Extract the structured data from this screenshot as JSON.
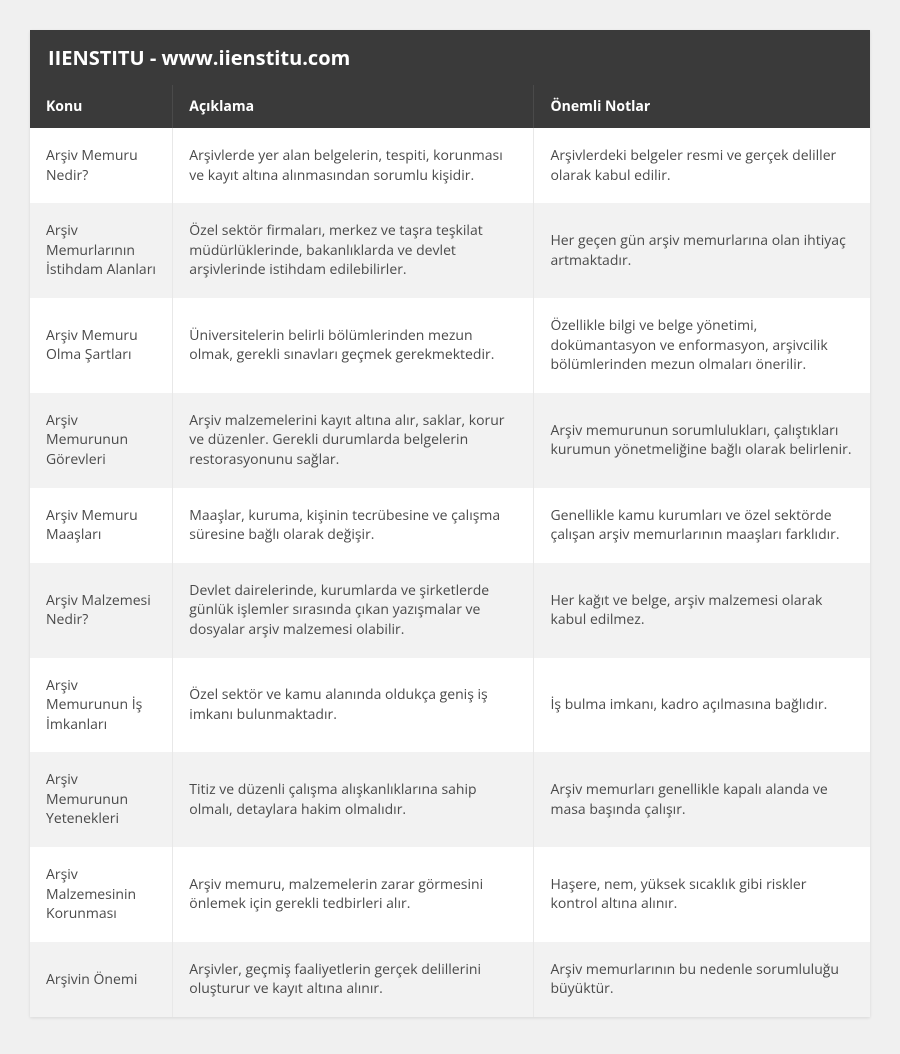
{
  "header": {
    "title": "IIENSTITU - www.iienstitu.com"
  },
  "table": {
    "columns": [
      {
        "label": "Konu",
        "class": "col-konu"
      },
      {
        "label": "Açıklama",
        "class": "col-aciklama"
      },
      {
        "label": "Önemli Notlar",
        "class": "col-notlar"
      }
    ],
    "rows": [
      {
        "konu": "Arşiv Memuru Nedir?",
        "aciklama": "Arşivlerde yer alan belgelerin, tespiti, korunması ve kayıt altına alınmasından sorumlu kişidir.",
        "notlar": "Arşivlerdeki belgeler resmi ve gerçek deliller olarak kabul edilir."
      },
      {
        "konu": "Arşiv Memurlarının İstihdam Alanları",
        "aciklama": "Özel sektör firmaları, merkez ve taşra teşkilat müdürlüklerinde, bakanlıklarda ve devlet arşivlerinde istihdam edilebilirler.",
        "notlar": "Her geçen gün arşiv memurlarına olan ihtiyaç artmaktadır."
      },
      {
        "konu": "Arşiv Memuru Olma Şartları",
        "aciklama": "Üniversitelerin belirli bölümlerinden mezun olmak, gerekli sınavları geçmek gerekmektedir.",
        "notlar": "Özellikle bilgi ve belge yönetimi, dokümantasyon ve enformasyon, arşivcilik bölümlerinden mezun olmaları önerilir."
      },
      {
        "konu": "Arşiv Memurunun Görevleri",
        "aciklama": "Arşiv malzemelerini kayıt altına alır, saklar, korur ve düzenler. Gerekli durumlarda belgelerin restorasyonunu sağlar.",
        "notlar": "Arşiv memurunun sorumlulukları, çalıştıkları kurumun yönetmeliğine bağlı olarak belirlenir."
      },
      {
        "konu": "Arşiv Memuru Maaşları",
        "aciklama": "Maaşlar, kuruma, kişinin tecrübesine ve çalışma süresine bağlı olarak değişir.",
        "notlar": "Genellikle kamu kurumları ve özel sektörde çalışan arşiv memurlarının maaşları farklıdır."
      },
      {
        "konu": "Arşiv Malzemesi Nedir?",
        "aciklama": "Devlet dairelerinde, kurumlarda ve şirketlerde günlük işlemler sırasında çıkan yazışmalar ve dosyalar arşiv malzemesi olabilir.",
        "notlar": "Her kağıt ve belge, arşiv malzemesi olarak kabul edilmez."
      },
      {
        "konu": "Arşiv Memurunun İş İmkanları",
        "aciklama": "Özel sektör ve kamu alanında oldukça geniş iş imkanı bulunmaktadır.",
        "notlar": "İş bulma imkanı, kadro açılmasına bağlıdır."
      },
      {
        "konu": "Arşiv Memurunun Yetenekleri",
        "aciklama": "Titiz ve düzenli çalışma alışkanlıklarına sahip olmalı, detaylara hakim olmalıdır.",
        "notlar": "Arşiv memurları genellikle kapalı alanda ve masa başında çalışır."
      },
      {
        "konu": "Arşiv Malzemesinin Korunması",
        "aciklama": "Arşiv memuru, malzemelerin zarar görmesini önlemek için gerekli tedbirleri alır.",
        "notlar": "Haşere, nem, yüksek sıcaklık gibi riskler kontrol altına alınır."
      },
      {
        "konu": "Arşivin Önemi",
        "aciklama": "Arşivler, geçmiş faaliyetlerin gerçek delillerini oluşturur ve kayıt altına alınır.",
        "notlar": "Arşiv memurlarının bu nedenle sorumluluğu büyüktür."
      }
    ]
  },
  "styles": {
    "background_color": "#f0f0f0",
    "container_bg": "#ffffff",
    "header_bg": "#3a3a3a",
    "header_text_color": "#ffffff",
    "row_odd_bg": "#ffffff",
    "row_even_bg": "#f2f2f2",
    "cell_text_color": "#4a4a4a",
    "header_font_size": 20,
    "th_font_size": 14,
    "td_font_size": 14
  }
}
